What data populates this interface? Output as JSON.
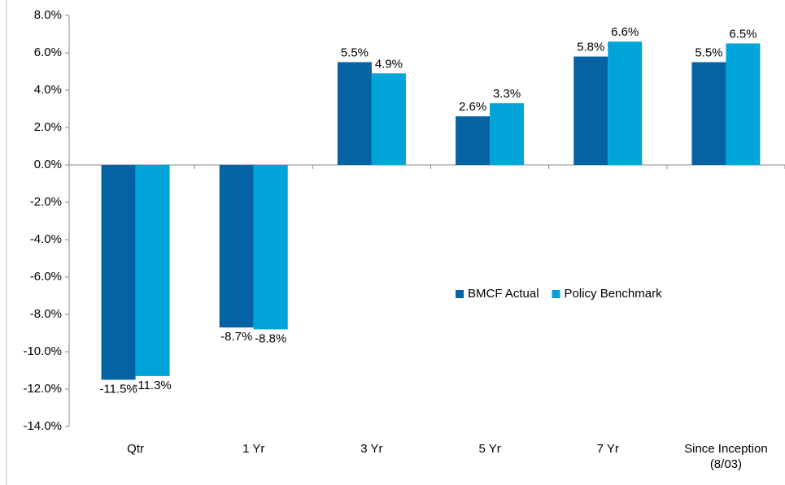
{
  "chart_data": {
    "type": "bar",
    "categories": [
      "Qtr",
      "1 Yr",
      "3 Yr",
      "5 Yr",
      "7 Yr",
      "Since Inception (8/03)"
    ],
    "series": [
      {
        "name": "BMCF Actual",
        "color": "#0563a3",
        "values": [
          -11.5,
          -8.7,
          5.5,
          2.6,
          5.8,
          5.5
        ],
        "value_labels": [
          "-11.5%",
          "-8.7%",
          "5.5%",
          "2.6%",
          "5.8%",
          "5.5%"
        ]
      },
      {
        "name": "Policy Benchmark",
        "color": "#00a4d9",
        "values": [
          -11.3,
          -8.8,
          4.9,
          3.3,
          6.6,
          6.5
        ],
        "value_labels": [
          "-11.3%",
          "-8.8%",
          "4.9%",
          "3.3%",
          "6.6%",
          "6.5%"
        ]
      }
    ],
    "ylim": [
      -14,
      8
    ],
    "yticks": [
      {
        "value": -14,
        "label": "-14.0%"
      },
      {
        "value": -12,
        "label": "-12.0%"
      },
      {
        "value": -10,
        "label": "-10.0%"
      },
      {
        "value": -8,
        "label": "-8.0%"
      },
      {
        "value": -6,
        "label": "-6.0%"
      },
      {
        "value": -4,
        "label": "-4.0%"
      },
      {
        "value": -2,
        "label": "-2.0%"
      },
      {
        "value": 0,
        "label": "0.0%"
      },
      {
        "value": 2,
        "label": "2.0%"
      },
      {
        "value": 4,
        "label": "4.0%"
      },
      {
        "value": 6,
        "label": "6.0%"
      },
      {
        "value": 8,
        "label": "8.0%"
      }
    ],
    "legend": "center-right"
  }
}
